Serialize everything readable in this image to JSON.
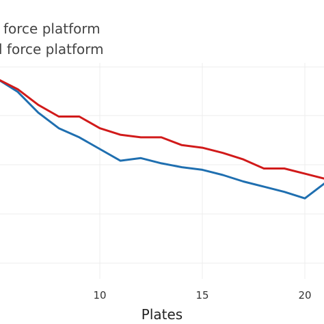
{
  "chart_data": {
    "type": "line",
    "xlabel": "Plates",
    "x_ticks": [
      10,
      15,
      20
    ],
    "xlim": [
      5,
      21
    ],
    "ylim": [
      0,
      1
    ],
    "grid": true,
    "legend_placement": "top-left",
    "series": [
      {
        "name": "force platform",
        "color": "#1f6fb0",
        "x": [
          5,
          6,
          7,
          8,
          9,
          10,
          11,
          12,
          13,
          14,
          15,
          16,
          17,
          18,
          19,
          20,
          21
        ],
        "y": [
          0.77,
          0.72,
          0.64,
          0.58,
          0.545,
          0.5,
          0.455,
          0.465,
          0.445,
          0.43,
          0.42,
          0.4,
          0.375,
          0.355,
          0.335,
          0.31,
          0.37
        ]
      },
      {
        "name": "l force platform",
        "color": "#d11a1a",
        "x": [
          5,
          6,
          7,
          8,
          9,
          10,
          11,
          12,
          13,
          14,
          15,
          16,
          17,
          18,
          19,
          20,
          21
        ],
        "y": [
          0.77,
          0.73,
          0.67,
          0.625,
          0.625,
          0.58,
          0.555,
          0.545,
          0.545,
          0.515,
          0.505,
          0.485,
          0.46,
          0.425,
          0.425,
          0.405,
          0.385
        ]
      }
    ]
  }
}
